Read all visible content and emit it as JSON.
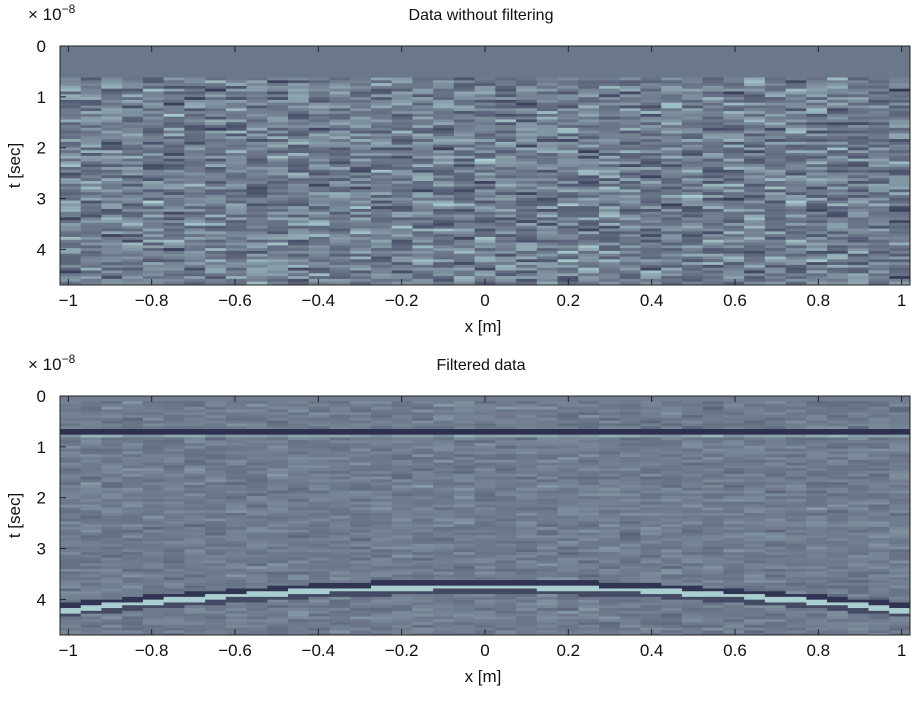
{
  "chart_data": [
    {
      "type": "heatmap",
      "title": "Data without filtering",
      "xlabel": "x [m]",
      "ylabel": "t [sec]",
      "y_multiplier": {
        "base": "× 10",
        "exponent": "−8"
      },
      "xlim": [
        -1.02,
        1.02
      ],
      "xticks": [
        {
          "value": -1,
          "label": "−1"
        },
        {
          "value": -0.8,
          "label": "−0.8"
        },
        {
          "value": -0.6,
          "label": "−0.6"
        },
        {
          "value": -0.4,
          "label": "−0.4"
        },
        {
          "value": -0.2,
          "label": "−0.2"
        },
        0,
        0.2,
        0.4,
        0.6,
        0.8,
        1
      ],
      "ylim": [
        4.7,
        0
      ],
      "yticks": [
        0,
        1,
        2,
        3,
        4
      ],
      "filtered": false
    },
    {
      "type": "heatmap",
      "title": "Filtered data",
      "xlabel": "x [m]",
      "ylabel": "t [sec]",
      "y_multiplier": {
        "base": "× 10",
        "exponent": "−8"
      },
      "xlim": [
        -1.02,
        1.02
      ],
      "xticks": [
        {
          "value": -1,
          "label": "−1"
        },
        {
          "value": -0.8,
          "label": "−0.8"
        },
        {
          "value": -0.6,
          "label": "−0.6"
        },
        {
          "value": -0.4,
          "label": "−0.4"
        },
        {
          "value": -0.2,
          "label": "−0.2"
        },
        0,
        0.2,
        0.4,
        0.6,
        0.8,
        1
      ],
      "ylim": [
        4.7,
        0
      ],
      "yticks": [
        0,
        1,
        2,
        3,
        4
      ],
      "filtered": true
    }
  ]
}
